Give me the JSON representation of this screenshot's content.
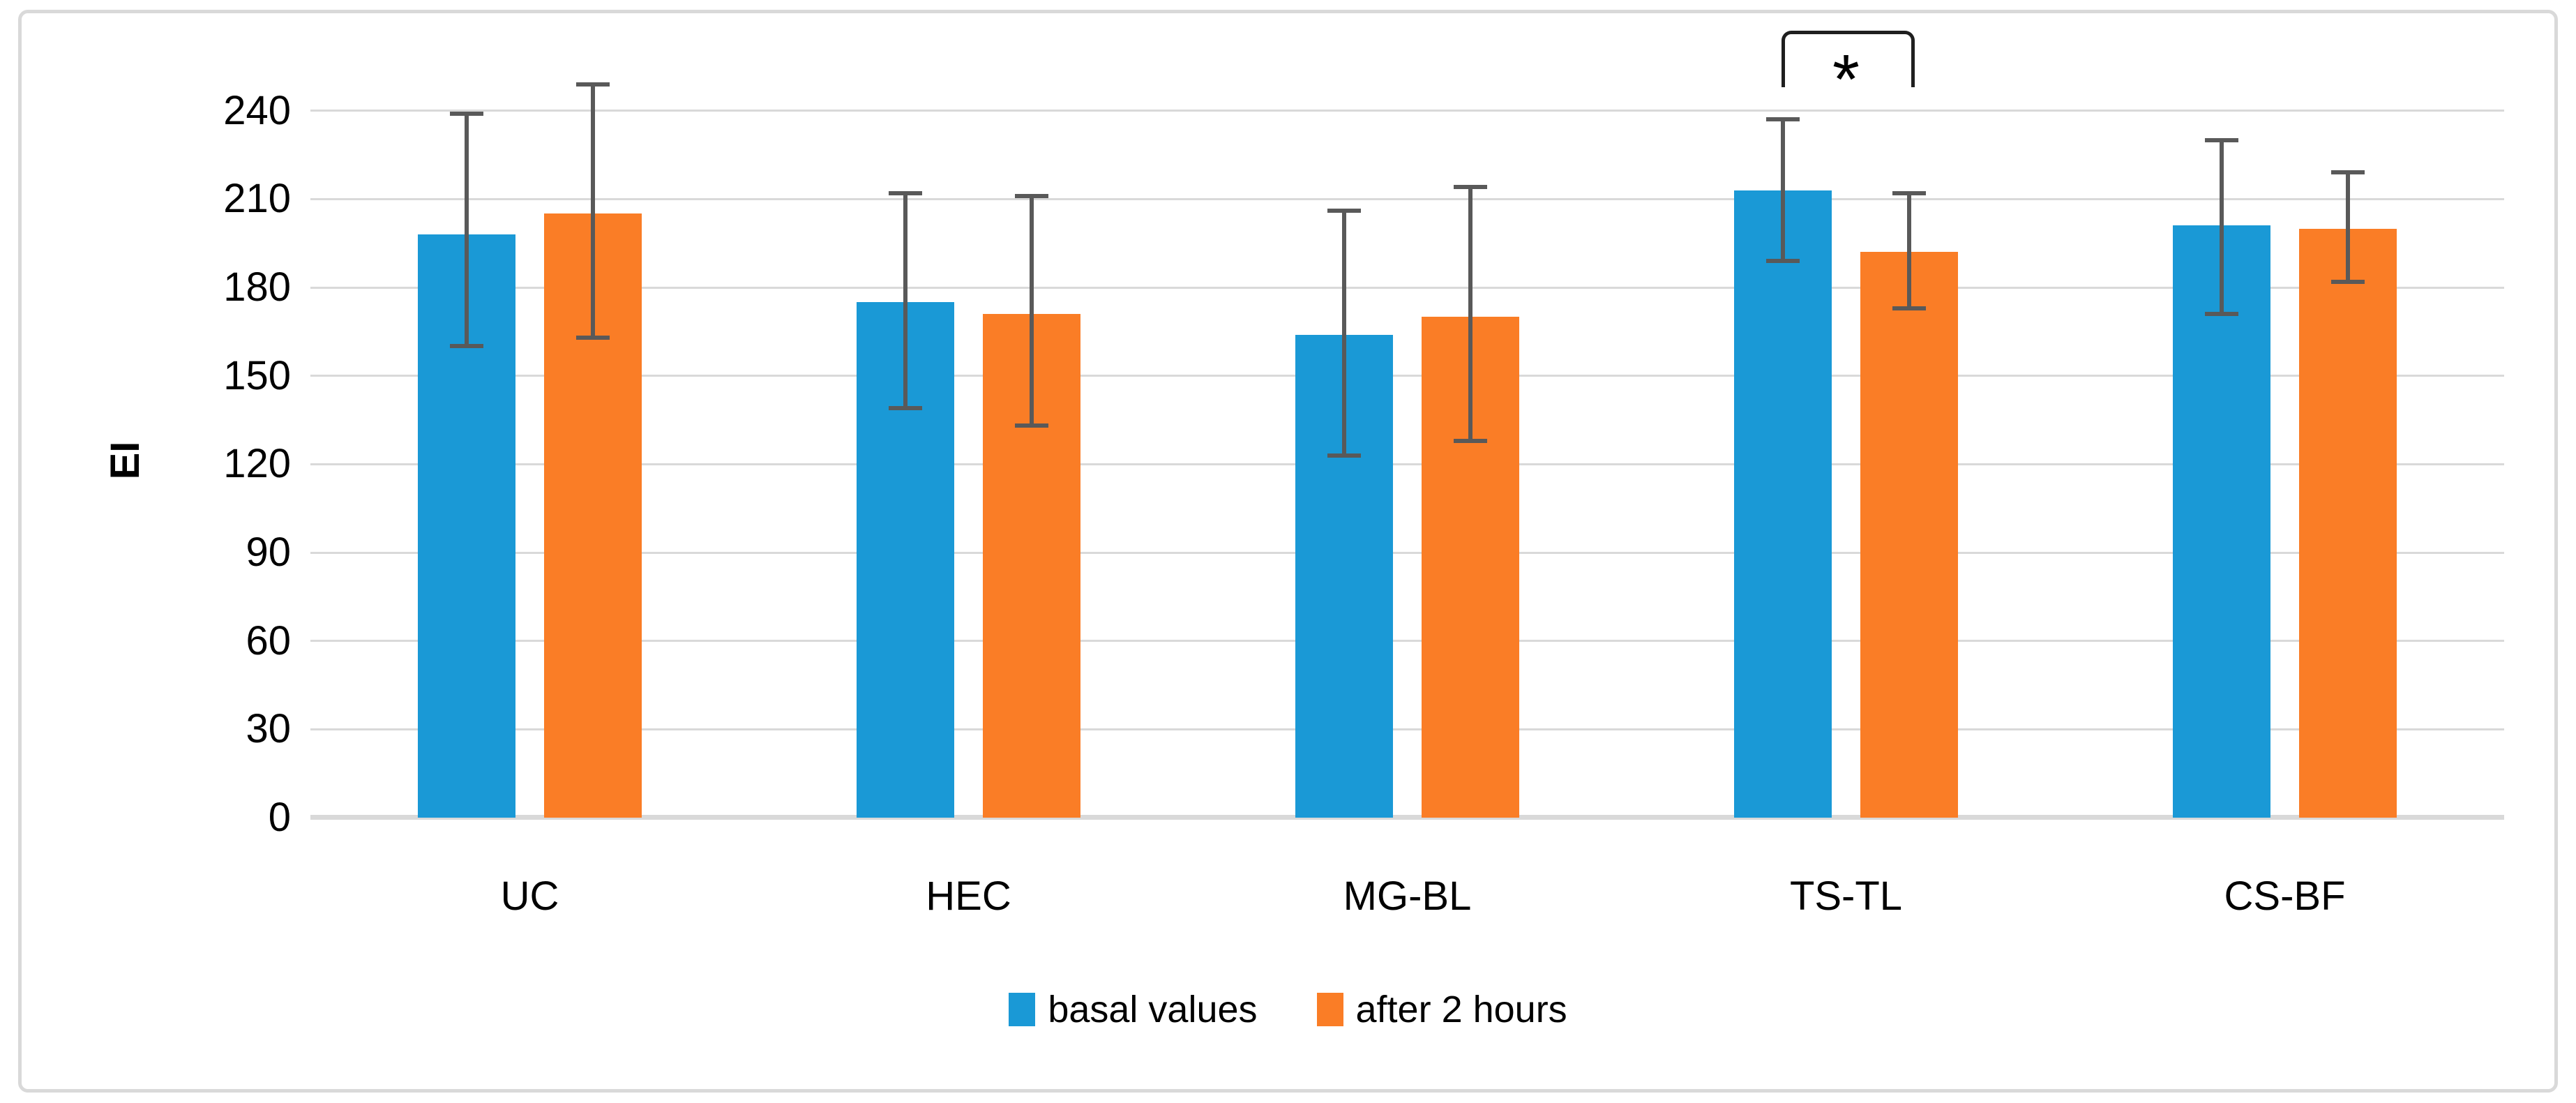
{
  "figure": {
    "background": "#ffffff",
    "border_color": "#d9d9d9"
  },
  "chart_data": {
    "type": "bar",
    "title": "",
    "xlabel": "",
    "ylabel": "EI",
    "categories": [
      "UC",
      "HEC",
      "MG-BL",
      "TS-TL",
      "CS-BF"
    ],
    "series": [
      {
        "name": "basal values",
        "color": "#1a99d6",
        "values": [
          198,
          175,
          164,
          213,
          201
        ],
        "err_low": [
          160,
          139,
          123,
          189,
          171
        ],
        "err_high": [
          239,
          212,
          206,
          237,
          230
        ]
      },
      {
        "name": "after 2 hours",
        "color": "#fa7d26",
        "values": [
          205,
          171,
          170,
          192,
          200
        ],
        "err_low": [
          163,
          133,
          128,
          173,
          182
        ],
        "err_high": [
          249,
          211,
          214,
          212,
          219
        ]
      }
    ],
    "yticks": [
      0,
      30,
      60,
      90,
      120,
      150,
      180,
      210,
      240
    ],
    "ylim": [
      0,
      240
    ],
    "grid": true,
    "legend_position": "bottom",
    "error_bar_color": "#595959",
    "annotation": {
      "symbol": "*",
      "category": "TS-TL",
      "spans": [
        "basal values",
        "after 2 hours"
      ]
    }
  }
}
